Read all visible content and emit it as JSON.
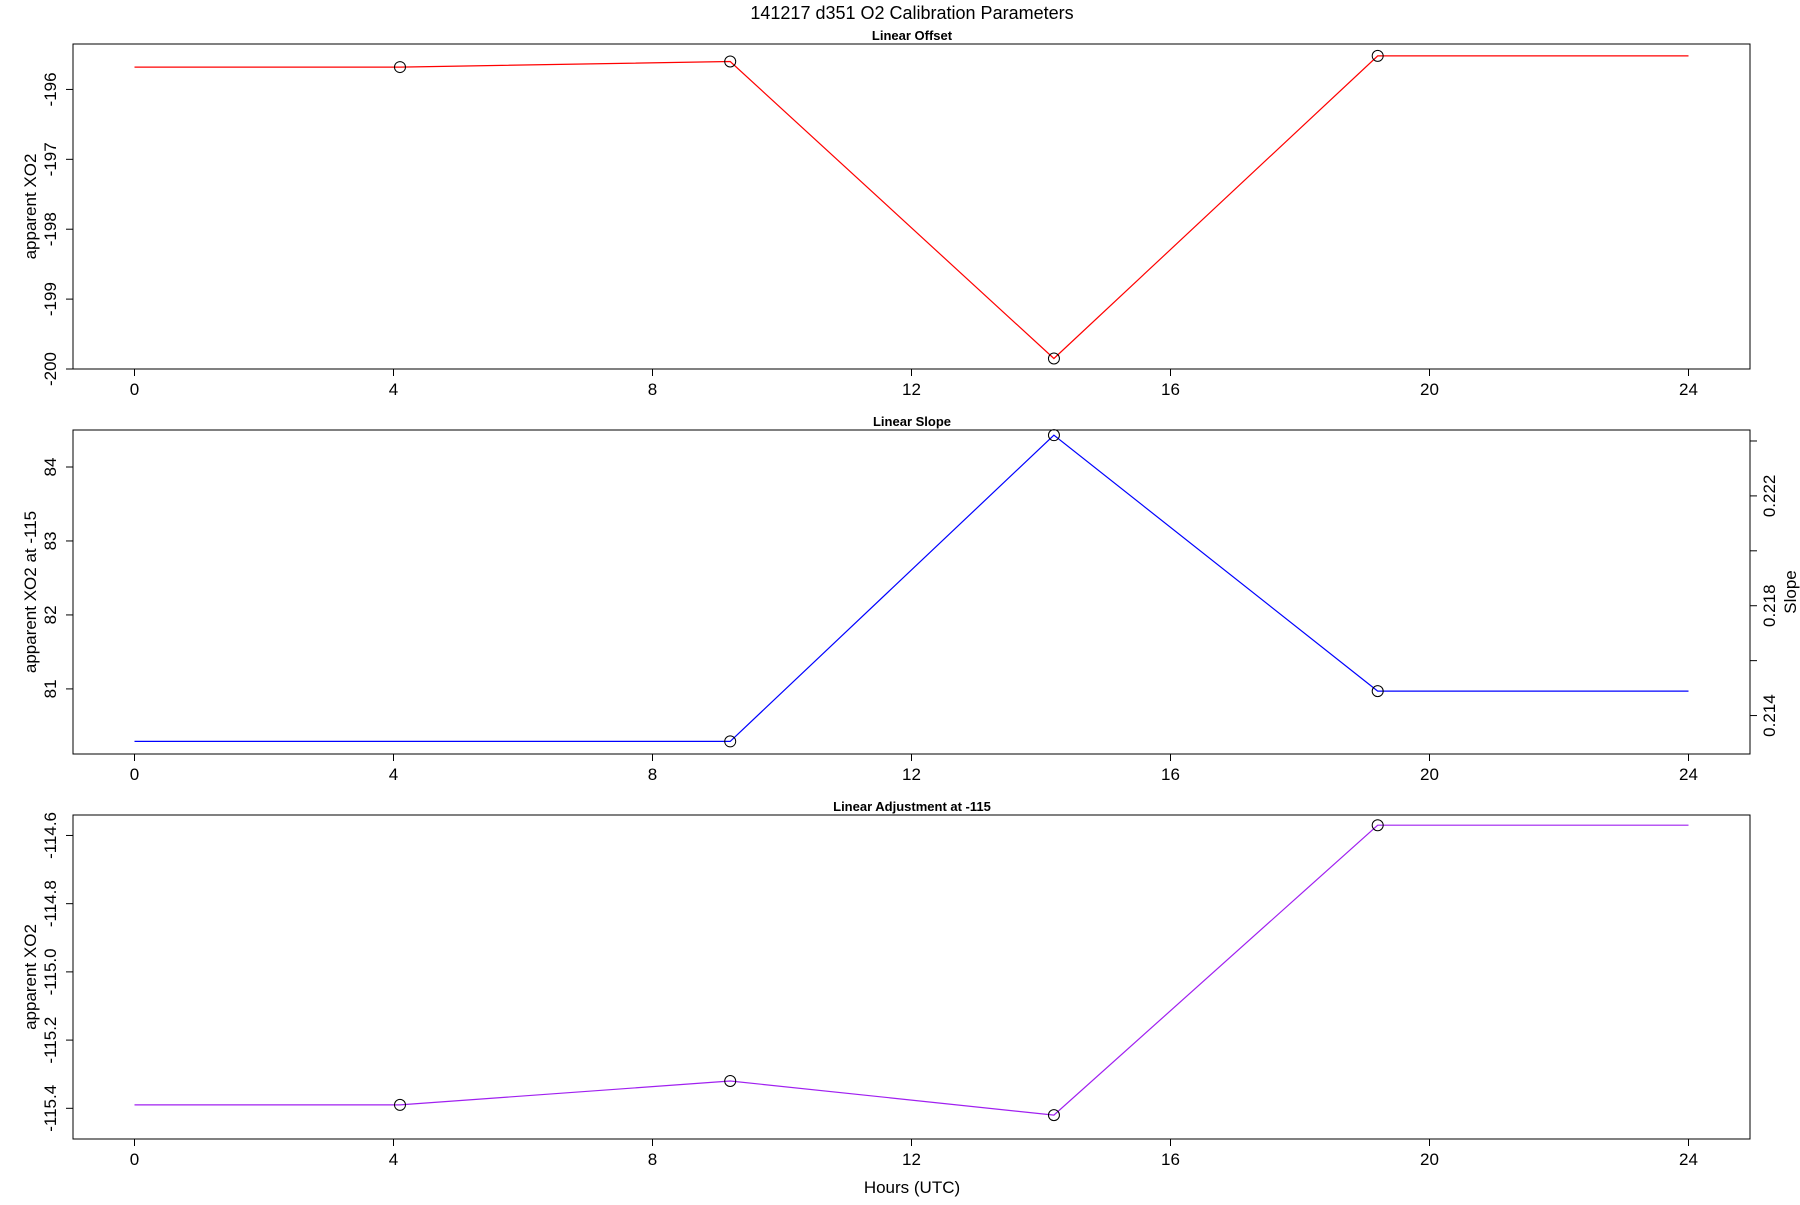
{
  "figure": {
    "title": "141217   d351   O2 Calibration Parameters",
    "xlabel": "Hours (UTC)"
  },
  "chart_data": [
    {
      "type": "line",
      "title": "Linear Offset",
      "xlabel": "",
      "ylabel": "apparent XO2",
      "xlim": [
        -0.95,
        24.95
      ],
      "xticks": [
        0,
        4,
        8,
        12,
        16,
        20,
        24
      ],
      "ylim": [
        -200.0,
        -195.35
      ],
      "yticks": [
        -200,
        -199,
        -198,
        -197,
        -196
      ],
      "grid": false,
      "color": "#ff0000",
      "series": [
        {
          "x": [
            0,
            4.1,
            9.2,
            14.2,
            19.2,
            24
          ],
          "y": [
            -195.68,
            -195.68,
            -195.6,
            -199.85,
            -195.52,
            -195.52
          ]
        }
      ],
      "markers_x": [
        4.1,
        9.2,
        14.2,
        19.2
      ]
    },
    {
      "type": "line",
      "title": "Linear Slope",
      "xlabel": "",
      "ylabel": "apparent XO2 at -115",
      "xlim": [
        -0.95,
        24.95
      ],
      "xticks": [
        0,
        4,
        8,
        12,
        16,
        20,
        24
      ],
      "ylim": [
        80.12,
        84.5
      ],
      "yticks": [
        81,
        82,
        83,
        84
      ],
      "grid": false,
      "color": "#0000ff",
      "series": [
        {
          "x": [
            0,
            4.1,
            9.2,
            14.2,
            19.2,
            24
          ],
          "y": [
            80.29,
            80.29,
            80.29,
            84.43,
            80.97,
            80.97
          ]
        }
      ],
      "markers_x": [
        9.2,
        14.2,
        19.2
      ],
      "secondary_y": {
        "label": "Slope",
        "yticks": [
          0.214,
          0.218,
          0.222
        ],
        "minor_ticks": [
          0.216,
          0.22,
          0.224
        ],
        "ylim": [
          0.2126,
          0.2244
        ]
      }
    },
    {
      "type": "line",
      "title": "Linear Adjustment at -115",
      "xlabel": "Hours (UTC)",
      "ylabel": "apparent XO2",
      "xlim": [
        -0.95,
        24.95
      ],
      "xticks": [
        0,
        4,
        8,
        12,
        16,
        20,
        24
      ],
      "ylim": [
        -115.49,
        -114.54
      ],
      "yticks": [
        -115.4,
        -115.2,
        -115.0,
        -114.8,
        -114.6
      ],
      "ytick_labels": [
        "-115.4",
        "-115.2",
        "-115.0",
        "-114.8",
        "-114.6"
      ],
      "grid": false,
      "color": "#a020f0",
      "series": [
        {
          "x": [
            0,
            4.1,
            9.2,
            14.2,
            19.2,
            24
          ],
          "y": [
            -115.39,
            -115.39,
            -115.32,
            -115.42,
            -114.57,
            -114.57
          ]
        }
      ],
      "markers_x": [
        4.1,
        9.2,
        14.2,
        19.2
      ]
    }
  ]
}
